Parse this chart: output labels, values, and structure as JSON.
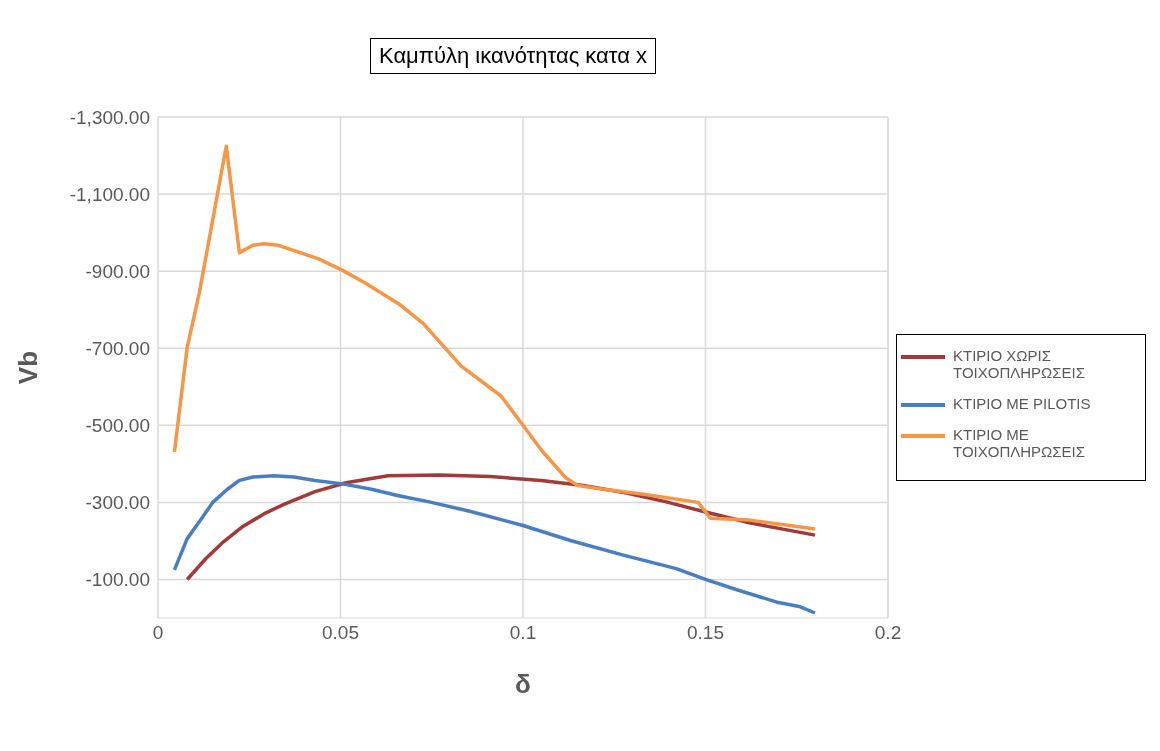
{
  "chart_data": {
    "type": "line",
    "title": "Καμπύλη ικανότητας κατα x",
    "xlabel": "δ",
    "ylabel": "Vb",
    "xlim": [
      0,
      0.2
    ],
    "xticks": [
      0,
      0.05,
      0.1,
      0.15,
      0.2
    ],
    "ylim": [
      0,
      -1300
    ],
    "yticks": [
      {
        "value": -1300,
        "label": "-1,300.00"
      },
      {
        "value": -1100,
        "label": "-1,100.00"
      },
      {
        "value": -900,
        "label": "-900.00"
      },
      {
        "value": -700,
        "label": "-700.00"
      },
      {
        "value": -500,
        "label": "-500.00"
      },
      {
        "value": -300,
        "label": "-300.00"
      },
      {
        "value": -100,
        "label": "-100.00"
      }
    ],
    "grid": true,
    "legend": "right",
    "marker": "none",
    "line_style": "solid",
    "series": [
      {
        "name": "ΚΤΙΡΙΟ ΧΩΡΙΣ ΤΟΙΧΟΠΛΗΡΩΣΕΙΣ",
        "color": "#9e3b3b",
        "x": [
          0.008,
          0.013,
          0.0175,
          0.023,
          0.029,
          0.0345,
          0.043,
          0.0515,
          0.063,
          0.077,
          0.091,
          0.105,
          0.1165,
          0.128,
          0.139,
          0.15,
          0.162,
          0.18
        ],
        "values": [
          -100,
          -153,
          -194,
          -236,
          -270,
          -295,
          -328,
          -351,
          -369,
          -371,
          -367,
          -357,
          -344,
          -325,
          -302,
          -275,
          -247,
          -215
        ]
      },
      {
        "name": "ΚΤΙΡΙΟ ΜΕ PILOTIS",
        "color": "#4a7ebf",
        "x": [
          0.0045,
          0.008,
          0.012,
          0.015,
          0.019,
          0.0223,
          0.026,
          0.0317,
          0.0373,
          0.043,
          0.0506,
          0.0585,
          0.0656,
          0.074,
          0.0854,
          0.1,
          0.113,
          0.128,
          0.142,
          0.15,
          0.159,
          0.17,
          0.176,
          0.18
        ],
        "values": [
          -125,
          -206,
          -259,
          -300,
          -334,
          -357,
          -366,
          -369,
          -366,
          -357,
          -348,
          -334,
          -318,
          -302,
          -277,
          -240,
          -201,
          -162,
          -128,
          -100,
          -72,
          -40,
          -29,
          -13
        ]
      },
      {
        "name": "ΚΤΙΡΙΟ ΜΕ ΤΟΙΧΟΠΛΗΡΩΣΕΙΣ",
        "color": "#f79646",
        "x": [
          0.0045,
          0.008,
          0.0113,
          0.0187,
          0.0223,
          0.026,
          0.029,
          0.033,
          0.044,
          0.0506,
          0.057,
          0.066,
          0.0727,
          0.083,
          0.094,
          0.1,
          0.105,
          0.1117,
          0.115,
          0.122,
          0.133,
          0.148,
          0.1513,
          0.162,
          0.18
        ],
        "values": [
          -431,
          -702,
          -843,
          -1224,
          -948,
          -967,
          -971,
          -967,
          -932,
          -902,
          -868,
          -815,
          -764,
          -654,
          -576,
          -500,
          -436,
          -364,
          -344,
          -334,
          -321,
          -300,
          -259,
          -254,
          -231
        ]
      }
    ]
  }
}
